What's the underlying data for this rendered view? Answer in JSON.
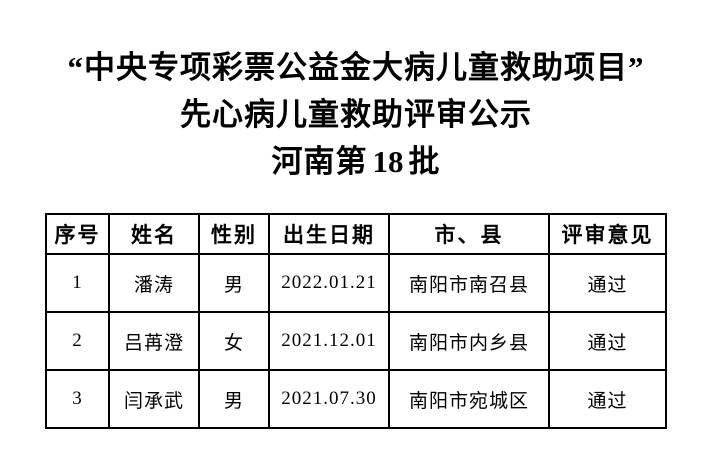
{
  "title": {
    "line1": "“中央专项彩票公益金大病儿童救助项目”",
    "line2": "先心病儿童救助评审公示",
    "line3_prefix": "河南第",
    "line3_number": "18",
    "line3_suffix": "批"
  },
  "table": {
    "headers": [
      "序号",
      "姓名",
      "性别",
      "出生日期",
      "市、县",
      "评审意见"
    ],
    "rows": [
      [
        "1",
        "潘涛",
        "男",
        "2022.01.21",
        "南阳市南召县",
        "通过"
      ],
      [
        "2",
        "吕苒澄",
        "女",
        "2021.12.01",
        "南阳市内乡县",
        "通过"
      ],
      [
        "3",
        "闫承武",
        "男",
        "2021.07.30",
        "南阳市宛城区",
        "通过"
      ]
    ]
  },
  "colors": {
    "text": "#000000",
    "background": "#ffffff",
    "table_border": "#000000"
  }
}
